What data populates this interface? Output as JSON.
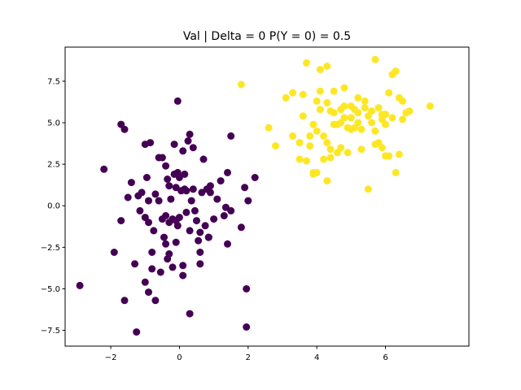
{
  "chart_data": {
    "type": "scatter",
    "title": "Val | Delta = 0 P(Y = 0) = 0.5",
    "xlabel": "",
    "ylabel": "",
    "xlim": [
      -3.33,
      8.43
    ],
    "ylim": [
      -8.45,
      9.55
    ],
    "xticks": [
      -2,
      0,
      2,
      4,
      6
    ],
    "yticks": [
      -7.5,
      -5.0,
      -2.5,
      0.0,
      2.5,
      5.0,
      7.5
    ],
    "x_tick_labels": [
      "−2",
      "0",
      "2",
      "4",
      "6"
    ],
    "y_tick_labels": [
      "−7.5",
      "−5.0",
      "−2.5",
      "0.0",
      "2.5",
      "5.0",
      "7.5"
    ],
    "grid": false,
    "legend": "none",
    "series": [
      {
        "color": "#440154",
        "x": [
          -2.9,
          -2.2,
          -1.9,
          -1.7,
          -1.7,
          -1.6,
          -1.6,
          -1.5,
          -1.4,
          -1.3,
          -1.25,
          -1.2,
          -1.15,
          -1.1,
          -1.0,
          -1.0,
          -1.0,
          -0.95,
          -0.9,
          -0.9,
          -0.9,
          -0.85,
          -0.8,
          -0.8,
          -0.75,
          -0.7,
          -0.7,
          -0.6,
          -0.6,
          -0.55,
          -0.5,
          -0.5,
          -0.45,
          -0.4,
          -0.4,
          -0.4,
          -0.35,
          -0.35,
          -0.3,
          -0.3,
          -0.3,
          -0.25,
          -0.2,
          -0.2,
          -0.15,
          -0.15,
          -0.1,
          -0.1,
          -0.1,
          -0.05,
          -0.05,
          0.0,
          0.0,
          0.05,
          0.1,
          0.1,
          0.1,
          0.15,
          0.15,
          0.2,
          0.2,
          0.25,
          0.3,
          0.3,
          0.35,
          0.4,
          0.4,
          0.45,
          0.5,
          0.55,
          0.6,
          0.6,
          0.65,
          0.7,
          0.75,
          0.8,
          0.85,
          0.85,
          0.9,
          0.9,
          1.0,
          1.1,
          1.2,
          1.3,
          1.35,
          1.4,
          1.4,
          1.5,
          1.5,
          1.8,
          1.9,
          1.95,
          1.95,
          2.0,
          2.2,
          -0.05,
          0.3,
          0.6
        ],
        "y": [
          -4.8,
          2.2,
          -2.8,
          -0.9,
          4.9,
          -5.7,
          4.6,
          0.5,
          1.4,
          -3.5,
          -7.6,
          0.6,
          -0.3,
          0.8,
          3.7,
          -0.7,
          -4.6,
          1.7,
          -1.0,
          0.3,
          -5.2,
          3.8,
          -3.8,
          -2.8,
          -1.5,
          0.7,
          -5.7,
          2.9,
          0.3,
          -4.0,
          2.9,
          -0.8,
          -1.9,
          2.4,
          -2.3,
          -0.6,
          -3.2,
          1.6,
          1.2,
          -1.0,
          -2.9,
          0.4,
          -0.8,
          -3.7,
          3.7,
          1.9,
          -0.9,
          -2.2,
          1.1,
          -1.2,
          2.0,
          1.7,
          -0.7,
          0.9,
          3.3,
          -3.6,
          -4.2,
          1.9,
          1.0,
          0.9,
          -0.4,
          3.9,
          -1.5,
          -6.5,
          0.3,
          1.0,
          3.5,
          -0.3,
          -0.9,
          -2.1,
          -3.5,
          -2.8,
          0.8,
          2.8,
          -1.2,
          1.0,
          -1.9,
          -1.9,
          1.2,
          0.8,
          -0.8,
          0.4,
          1.5,
          -0.6,
          -0.1,
          -2.3,
          2.0,
          4.2,
          -0.3,
          -1.3,
          1.1,
          -5.0,
          -7.3,
          0.3,
          1.7,
          6.3,
          4.3,
          -1.6
        ]
      },
      {
        "color": "#fde725",
        "x": [
          1.8,
          2.6,
          2.8,
          3.1,
          3.3,
          3.3,
          3.5,
          3.6,
          3.6,
          3.7,
          3.7,
          3.8,
          3.8,
          3.9,
          3.9,
          3.9,
          4.0,
          4.0,
          4.0,
          4.1,
          4.1,
          4.2,
          4.2,
          4.3,
          4.3,
          4.3,
          4.4,
          4.4,
          4.4,
          4.5,
          4.5,
          4.5,
          4.6,
          4.6,
          4.7,
          4.7,
          4.7,
          4.8,
          4.8,
          4.9,
          4.9,
          5.0,
          5.0,
          5.0,
          5.1,
          5.1,
          5.2,
          5.2,
          5.3,
          5.3,
          5.4,
          5.4,
          5.5,
          5.5,
          5.6,
          5.6,
          5.7,
          5.7,
          5.8,
          5.8,
          5.9,
          5.9,
          6.0,
          6.0,
          6.0,
          6.1,
          6.1,
          6.2,
          6.2,
          6.3,
          6.3,
          6.4,
          6.4,
          6.5,
          6.6,
          6.7,
          7.3,
          4.3,
          4.8,
          5.7,
          5.2,
          4.1,
          3.5,
          5.9,
          6.5
        ],
        "y": [
          7.3,
          4.7,
          3.6,
          6.5,
          4.2,
          6.8,
          2.8,
          5.4,
          6.7,
          8.6,
          2.7,
          4.2,
          3.6,
          2.0,
          4.9,
          1.9,
          6.3,
          4.5,
          2.0,
          6.9,
          5.8,
          4.2,
          2.8,
          8.4,
          6.2,
          3.8,
          5.7,
          2.9,
          3.4,
          6.9,
          5.6,
          4.9,
          4.9,
          3.2,
          5.8,
          3.5,
          5.0,
          6.0,
          5.3,
          4.7,
          3.2,
          6.0,
          5.3,
          4.6,
          5.8,
          4.7,
          6.5,
          5.6,
          3.4,
          4.6,
          5.9,
          6.3,
          1.0,
          5.4,
          5.7,
          5.0,
          8.8,
          3.7,
          5.9,
          3.8,
          5.2,
          3.5,
          4.9,
          3.0,
          5.5,
          6.8,
          3.0,
          7.9,
          5.3,
          8.1,
          2.0,
          6.5,
          3.1,
          5.2,
          5.6,
          5.7,
          6.0,
          1.5,
          7.1,
          4.5,
          5.0,
          8.2,
          3.8,
          5.5,
          6.3
        ]
      }
    ]
  }
}
